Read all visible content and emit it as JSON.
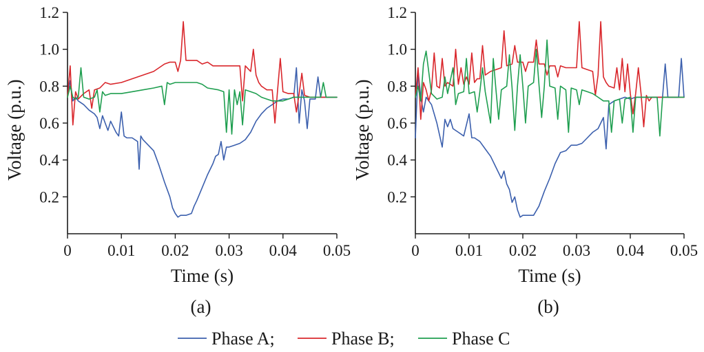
{
  "chart_data": [
    {
      "panel": "(a)",
      "type": "line",
      "xlabel": "Time (s)",
      "ylabel": "Voltage (p.u.)",
      "xlim": [
        0,
        0.05
      ],
      "ylim": [
        0,
        1.2
      ],
      "xticks": [
        "0",
        "0.01",
        "0.02",
        "0.03",
        "0.04",
        "0.05"
      ],
      "yticks": [
        "0.2",
        "0.4",
        "0.6",
        "0.8",
        "1.0",
        "1.2"
      ],
      "grid": false,
      "series": [
        {
          "name": "Phase A",
          "color": "#3b5fad",
          "x": [
            0,
            0.0005,
            0.001,
            0.0015,
            0.002,
            0.003,
            0.004,
            0.005,
            0.0055,
            0.006,
            0.0065,
            0.007,
            0.0075,
            0.008,
            0.009,
            0.0095,
            0.01,
            0.0105,
            0.011,
            0.012,
            0.013,
            0.0133,
            0.0136,
            0.014,
            0.015,
            0.016,
            0.017,
            0.018,
            0.019,
            0.0195,
            0.02,
            0.0205,
            0.021,
            0.022,
            0.023,
            0.0235,
            0.024,
            0.025,
            0.026,
            0.027,
            0.0275,
            0.028,
            0.0285,
            0.029,
            0.0295,
            0.03,
            0.031,
            0.032,
            0.033,
            0.034,
            0.035,
            0.036,
            0.037,
            0.038,
            0.039,
            0.04,
            0.041,
            0.042,
            0.0425,
            0.043,
            0.0435,
            0.044,
            0.0445,
            0.045,
            0.046,
            0.0465,
            0.047,
            0.048,
            0.049,
            0.05
          ],
          "y": [
            0.74,
            0.83,
            0.72,
            0.74,
            0.72,
            0.7,
            0.67,
            0.65,
            0.63,
            0.57,
            0.64,
            0.6,
            0.56,
            0.61,
            0.55,
            0.53,
            0.66,
            0.53,
            0.52,
            0.52,
            0.5,
            0.35,
            0.53,
            0.51,
            0.48,
            0.45,
            0.37,
            0.28,
            0.2,
            0.14,
            0.11,
            0.09,
            0.1,
            0.1,
            0.11,
            0.15,
            0.18,
            0.25,
            0.32,
            0.38,
            0.42,
            0.43,
            0.5,
            0.4,
            0.47,
            0.47,
            0.48,
            0.49,
            0.51,
            0.55,
            0.61,
            0.65,
            0.68,
            0.7,
            0.72,
            0.73,
            0.73,
            0.74,
            0.9,
            0.6,
            0.78,
            0.72,
            0.57,
            0.73,
            0.73,
            0.85,
            0.74,
            0.74,
            0.74,
            0.74
          ]
        },
        {
          "name": "Phase B",
          "color": "#d9262b",
          "x": [
            0,
            0.0005,
            0.001,
            0.0015,
            0.002,
            0.003,
            0.004,
            0.0045,
            0.005,
            0.006,
            0.007,
            0.008,
            0.01,
            0.012,
            0.014,
            0.016,
            0.018,
            0.019,
            0.02,
            0.0205,
            0.021,
            0.0215,
            0.022,
            0.023,
            0.024,
            0.025,
            0.026,
            0.027,
            0.028,
            0.029,
            0.03,
            0.031,
            0.032,
            0.0325,
            0.033,
            0.034,
            0.0345,
            0.035,
            0.0355,
            0.036,
            0.037,
            0.038,
            0.0385,
            0.039,
            0.0395,
            0.04,
            0.041,
            0.042,
            0.0425,
            0.043,
            0.0435,
            0.044,
            0.045,
            0.046,
            0.047,
            0.048,
            0.049,
            0.05
          ],
          "y": [
            0.74,
            0.91,
            0.59,
            0.77,
            0.73,
            0.76,
            0.78,
            0.68,
            0.78,
            0.79,
            0.82,
            0.81,
            0.82,
            0.84,
            0.86,
            0.88,
            0.92,
            0.93,
            0.93,
            0.88,
            0.94,
            1.15,
            0.94,
            0.94,
            0.94,
            0.92,
            0.93,
            0.91,
            0.91,
            0.91,
            0.91,
            0.91,
            0.91,
            0.72,
            0.91,
            0.88,
            1.0,
            0.86,
            0.82,
            0.8,
            0.78,
            0.78,
            0.6,
            0.78,
            0.95,
            0.77,
            0.76,
            0.76,
            0.66,
            0.76,
            0.87,
            0.75,
            0.74,
            0.74,
            0.74,
            0.74,
            0.74,
            0.74
          ]
        },
        {
          "name": "Phase C",
          "color": "#1e9e4f",
          "x": [
            0,
            0.0005,
            0.001,
            0.0015,
            0.002,
            0.0025,
            0.003,
            0.004,
            0.005,
            0.0055,
            0.006,
            0.0065,
            0.007,
            0.008,
            0.01,
            0.012,
            0.014,
            0.016,
            0.0175,
            0.018,
            0.0185,
            0.019,
            0.02,
            0.022,
            0.024,
            0.025,
            0.026,
            0.028,
            0.029,
            0.0295,
            0.03,
            0.0305,
            0.031,
            0.0315,
            0.032,
            0.0325,
            0.033,
            0.034,
            0.035,
            0.036,
            0.037,
            0.038,
            0.039,
            0.04,
            0.041,
            0.042,
            0.043,
            0.044,
            0.045,
            0.046,
            0.047,
            0.0475,
            0.048,
            0.049,
            0.05
          ],
          "y": [
            0.74,
            0.8,
            0.74,
            0.73,
            0.74,
            0.9,
            0.74,
            0.73,
            0.74,
            0.78,
            0.66,
            0.77,
            0.75,
            0.76,
            0.76,
            0.77,
            0.78,
            0.79,
            0.8,
            0.7,
            0.82,
            0.81,
            0.82,
            0.82,
            0.82,
            0.81,
            0.79,
            0.78,
            0.77,
            0.55,
            0.78,
            0.54,
            0.78,
            0.7,
            0.77,
            0.59,
            0.78,
            0.77,
            0.76,
            0.74,
            0.73,
            0.72,
            0.72,
            0.72,
            0.73,
            0.74,
            0.74,
            0.74,
            0.74,
            0.74,
            0.74,
            0.82,
            0.74,
            0.74,
            0.74
          ]
        }
      ]
    },
    {
      "panel": "(b)",
      "type": "line",
      "xlabel": "Time (s)",
      "ylabel": "Voltage (p.u.)",
      "xlim": [
        0,
        0.05
      ],
      "ylim": [
        0,
        1.2
      ],
      "xticks": [
        "0",
        "0.01",
        "0.02",
        "0.03",
        "0.04",
        "0.05"
      ],
      "yticks": [
        "0.2",
        "0.4",
        "0.6",
        "0.8",
        "1.0",
        "1.2"
      ],
      "grid": false,
      "series": [
        {
          "name": "Phase A",
          "color": "#3b5fad",
          "x": [
            0,
            0.0005,
            0.001,
            0.0015,
            0.002,
            0.003,
            0.004,
            0.005,
            0.0055,
            0.006,
            0.0065,
            0.007,
            0.008,
            0.009,
            0.01,
            0.0105,
            0.011,
            0.012,
            0.013,
            0.014,
            0.015,
            0.016,
            0.0165,
            0.017,
            0.0175,
            0.018,
            0.0185,
            0.019,
            0.0195,
            0.02,
            0.021,
            0.022,
            0.023,
            0.024,
            0.025,
            0.026,
            0.027,
            0.028,
            0.029,
            0.03,
            0.031,
            0.032,
            0.033,
            0.034,
            0.035,
            0.0355,
            0.036,
            0.037,
            0.038,
            0.039,
            0.04,
            0.041,
            0.042,
            0.043,
            0.044,
            0.045,
            0.046,
            0.0465,
            0.047,
            0.048,
            0.049,
            0.0495,
            0.05
          ],
          "y": [
            0.52,
            0.89,
            0.74,
            0.66,
            0.74,
            0.7,
            0.6,
            0.47,
            0.62,
            0.58,
            0.62,
            0.57,
            0.55,
            0.53,
            0.65,
            0.52,
            0.52,
            0.5,
            0.46,
            0.42,
            0.36,
            0.3,
            0.34,
            0.27,
            0.24,
            0.17,
            0.2,
            0.13,
            0.09,
            0.1,
            0.1,
            0.1,
            0.15,
            0.23,
            0.3,
            0.38,
            0.44,
            0.45,
            0.48,
            0.48,
            0.49,
            0.52,
            0.55,
            0.57,
            0.63,
            0.46,
            0.7,
            0.72,
            0.73,
            0.74,
            0.73,
            0.74,
            0.74,
            0.74,
            0.74,
            0.74,
            0.74,
            0.92,
            0.74,
            0.74,
            0.74,
            0.95,
            0.74
          ]
        },
        {
          "name": "Phase B",
          "color": "#d9262b",
          "x": [
            0,
            0.0005,
            0.001,
            0.0015,
            0.002,
            0.0025,
            0.003,
            0.0035,
            0.004,
            0.0045,
            0.005,
            0.0055,
            0.006,
            0.007,
            0.0075,
            0.008,
            0.0085,
            0.009,
            0.0095,
            0.01,
            0.0105,
            0.011,
            0.0115,
            0.012,
            0.0125,
            0.013,
            0.014,
            0.015,
            0.016,
            0.0165,
            0.017,
            0.018,
            0.0185,
            0.019,
            0.02,
            0.0205,
            0.021,
            0.022,
            0.0225,
            0.023,
            0.024,
            0.0245,
            0.025,
            0.026,
            0.0265,
            0.027,
            0.028,
            0.029,
            0.03,
            0.0305,
            0.031,
            0.032,
            0.033,
            0.0335,
            0.034,
            0.0345,
            0.035,
            0.0355,
            0.036,
            0.037,
            0.0375,
            0.038,
            0.0385,
            0.039,
            0.0395,
            0.04,
            0.0405,
            0.041,
            0.0415,
            0.042,
            0.0425,
            0.043,
            0.0435,
            0.044,
            0.045,
            0.046,
            0.047,
            0.048,
            0.049,
            0.05
          ],
          "y": [
            0.74,
            0.9,
            0.62,
            0.82,
            0.78,
            0.72,
            0.78,
            0.98,
            0.8,
            0.79,
            0.95,
            0.8,
            0.82,
            0.8,
            1.0,
            0.81,
            0.9,
            0.81,
            0.85,
            0.81,
            0.98,
            0.82,
            0.84,
            0.84,
            1.02,
            0.86,
            0.88,
            0.89,
            0.9,
            1.1,
            0.91,
            0.92,
            1.02,
            0.93,
            0.93,
            0.88,
            0.93,
            0.93,
            1.05,
            0.92,
            0.92,
            0.86,
            0.91,
            0.91,
            0.85,
            0.91,
            0.9,
            0.9,
            0.9,
            1.15,
            0.9,
            0.89,
            0.88,
            0.75,
            0.86,
            1.15,
            0.85,
            0.82,
            0.8,
            0.79,
            0.9,
            0.78,
            0.95,
            0.77,
            0.92,
            0.76,
            0.65,
            0.76,
            0.9,
            0.76,
            0.58,
            0.75,
            0.72,
            0.74,
            0.74,
            0.74,
            0.74,
            0.74,
            0.74,
            0.74
          ]
        },
        {
          "name": "Phase C",
          "color": "#1e9e4f",
          "x": [
            0,
            0.0005,
            0.001,
            0.0015,
            0.002,
            0.003,
            0.004,
            0.005,
            0.0055,
            0.006,
            0.007,
            0.0075,
            0.008,
            0.009,
            0.0095,
            0.01,
            0.011,
            0.0115,
            0.012,
            0.0125,
            0.013,
            0.014,
            0.0145,
            0.015,
            0.0155,
            0.016,
            0.017,
            0.0175,
            0.018,
            0.0185,
            0.019,
            0.0195,
            0.02,
            0.0205,
            0.021,
            0.022,
            0.0225,
            0.023,
            0.0235,
            0.024,
            0.0245,
            0.025,
            0.026,
            0.0265,
            0.027,
            0.028,
            0.0285,
            0.029,
            0.03,
            0.0305,
            0.031,
            0.032,
            0.033,
            0.034,
            0.035,
            0.036,
            0.0365,
            0.037,
            0.038,
            0.0385,
            0.039,
            0.04,
            0.0405,
            0.041,
            0.042,
            0.043,
            0.044,
            0.045,
            0.0455,
            0.046,
            0.047,
            0.048,
            0.049,
            0.05
          ],
          "y": [
            0.74,
            0.8,
            0.72,
            0.92,
            0.99,
            0.76,
            0.73,
            0.74,
            0.85,
            0.76,
            0.9,
            0.7,
            0.76,
            0.77,
            0.95,
            0.76,
            0.77,
            0.66,
            0.77,
            0.9,
            0.77,
            0.6,
            0.95,
            0.78,
            0.62,
            0.78,
            0.8,
            0.97,
            0.79,
            0.56,
            0.8,
            0.97,
            0.8,
            0.6,
            0.8,
            0.82,
            1.0,
            0.81,
            0.63,
            0.8,
            1.05,
            0.8,
            0.79,
            0.62,
            0.8,
            0.78,
            0.55,
            0.79,
            0.78,
            0.7,
            0.78,
            0.77,
            0.76,
            0.74,
            0.72,
            0.72,
            0.55,
            0.72,
            0.73,
            0.6,
            0.73,
            0.74,
            0.55,
            0.74,
            0.74,
            0.74,
            0.74,
            0.74,
            0.53,
            0.74,
            0.74,
            0.74,
            0.74,
            0.74
          ]
        }
      ]
    }
  ],
  "legend": {
    "items": [
      {
        "label": "Phase A;",
        "color": "#3b5fad"
      },
      {
        "label": "Phase B;",
        "color": "#d9262b"
      },
      {
        "label": "Phase C",
        "color": "#1e9e4f"
      }
    ]
  }
}
